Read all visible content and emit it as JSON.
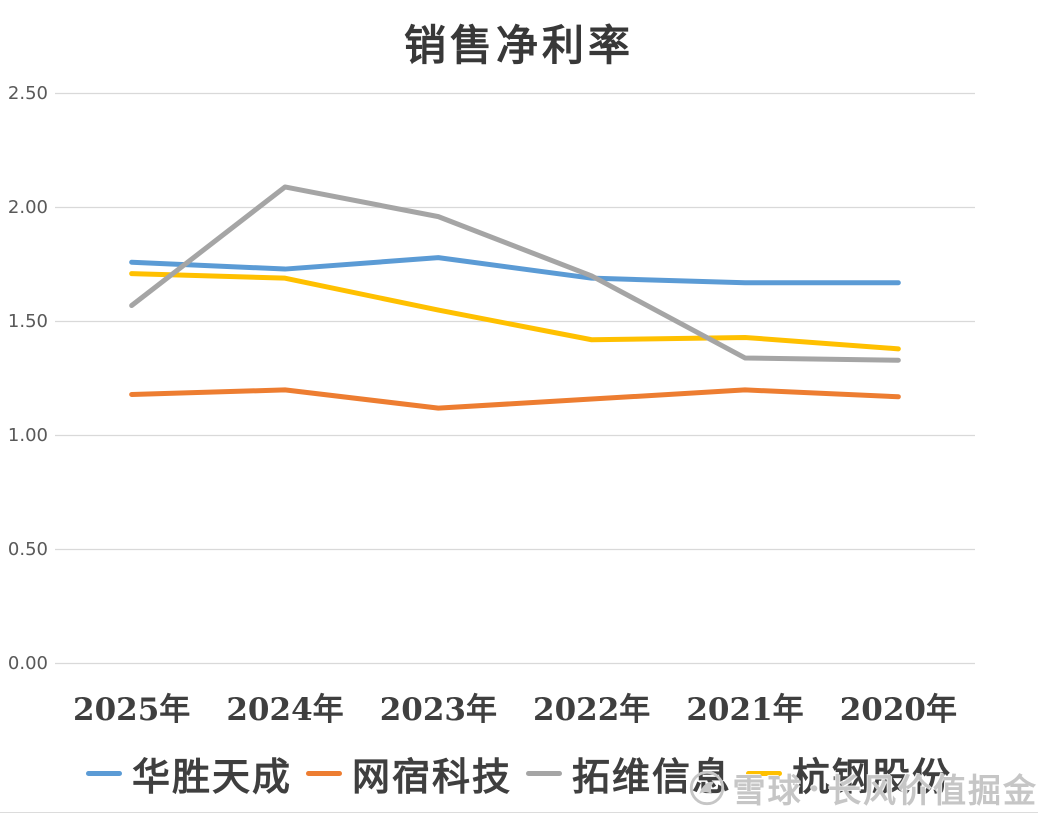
{
  "chart_data": {
    "type": "line",
    "title": "销售净利率",
    "categories": [
      "2025年",
      "2024年",
      "2023年",
      "2022年",
      "2021年",
      "2020年"
    ],
    "series": [
      {
        "name": "华胜天成",
        "color": "#5B9BD5",
        "values": [
          1.76,
          1.73,
          1.78,
          1.69,
          1.67,
          1.67
        ]
      },
      {
        "name": "网宿科技",
        "color": "#ED7D31",
        "values": [
          1.18,
          1.2,
          1.12,
          1.16,
          1.2,
          1.17
        ]
      },
      {
        "name": "拓维信息",
        "color": "#A5A5A5",
        "values": [
          1.57,
          2.09,
          1.96,
          1.7,
          1.34,
          1.33
        ]
      },
      {
        "name": "杭钢股份",
        "color": "#FFC000",
        "values": [
          1.71,
          1.69,
          1.55,
          1.42,
          1.43,
          1.38
        ]
      }
    ],
    "draw_order": [
      0,
      1,
      3,
      2
    ],
    "y_ticks": [
      "2.50",
      "2.00",
      "1.50",
      "1.00",
      "0.50",
      "0.00"
    ],
    "ylim": [
      0,
      2.5
    ],
    "grid": true,
    "legend_position": "bottom"
  },
  "watermark": {
    "brand": "雪球",
    "separator": "·",
    "name": "长风价值掘金"
  },
  "colors": {
    "gridline": "#D9D9D9",
    "axis_tick_label": "#595959",
    "category_label": "#3F3F3F",
    "title": "#383838",
    "legend_label": "#3F3F3F",
    "watermark": "#C6C6C6",
    "background": "#FFFFFF"
  }
}
